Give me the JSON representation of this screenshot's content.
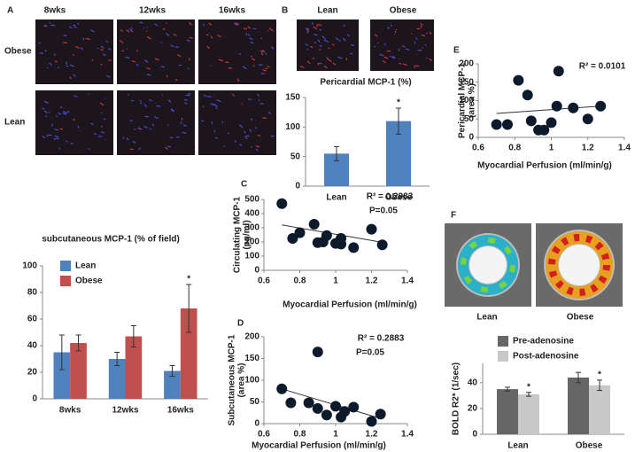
{
  "figure": {
    "panel_labels": [
      "A",
      "B",
      "C",
      "D",
      "E",
      "F"
    ],
    "a_columns": [
      "8wks",
      "12wks",
      "16wks"
    ],
    "a_rows": [
      "Obese",
      "Lean"
    ],
    "b_images": [
      "Lean",
      "Obese"
    ],
    "f_images": [
      "Lean",
      "Obese"
    ]
  },
  "chart_data": [
    {
      "type": "bar",
      "title": "subcutaneous MCP-1 (% of field)",
      "categories": [
        "8wks",
        "12wks",
        "16wks"
      ],
      "series": [
        {
          "name": "Lean",
          "color": "#4f81bd",
          "values": [
            35,
            30,
            21
          ],
          "errors": [
            13,
            5,
            4
          ],
          "markers": [
            null,
            null,
            null
          ]
        },
        {
          "name": "Obese",
          "color": "#c0504d",
          "values": [
            42,
            47,
            68
          ],
          "errors": [
            6,
            8,
            18
          ],
          "markers": [
            null,
            null,
            "*"
          ]
        }
      ],
      "ylim": [
        0,
        100
      ],
      "yticks": [
        0,
        20,
        40,
        60,
        80,
        100
      ],
      "legend": "top-left"
    },
    {
      "type": "bar",
      "title": "Pericardial MCP-1 (%)",
      "categories": [
        "Lean",
        "Obese"
      ],
      "series": [
        {
          "color": "#4f81bd",
          "values": [
            55,
            110
          ],
          "errors": [
            12,
            22
          ],
          "markers": [
            null,
            "*"
          ]
        }
      ],
      "ylim": [
        0,
        150
      ],
      "yticks": [
        0,
        50,
        100,
        150
      ]
    },
    {
      "type": "scatter",
      "xlabel": "Myocardial Perfusion (ml/min/g)",
      "ylabel": [
        "Circulating MCP-1",
        "(pg/ml)"
      ],
      "annotations": [
        "R² = 0.2983",
        "P=0.05"
      ],
      "color": "#0d1a2b",
      "x": [
        0.7,
        0.76,
        0.8,
        0.88,
        0.9,
        0.93,
        0.95,
        1.0,
        1.03,
        1.03,
        1.1,
        1.2,
        1.26
      ],
      "y": [
        470,
        225,
        265,
        325,
        195,
        200,
        245,
        190,
        225,
        185,
        160,
        290,
        180
      ],
      "trendline": {
        "x": [
          0.7,
          1.27
        ],
        "y": [
          320,
          195
        ]
      },
      "xlim": [
        0.6,
        1.4
      ],
      "xticks": [
        0.6,
        0.8,
        1,
        1.2,
        1.4
      ],
      "ylim": [
        0,
        500
      ],
      "yticks": [
        0,
        100,
        200,
        300,
        400,
        500
      ]
    },
    {
      "type": "scatter",
      "xlabel": "Myocardial Perfusion (ml/min/g)",
      "ylabel": [
        "Subcutaneous MCP-1",
        "(area %)"
      ],
      "annotations": [
        "R² = 0.2883",
        "P=0.05"
      ],
      "color": "#0d1a2b",
      "x": [
        0.7,
        0.75,
        0.85,
        0.9,
        0.9,
        0.95,
        1.0,
        1.03,
        1.05,
        1.1,
        1.2,
        1.25
      ],
      "y": [
        80,
        48,
        48,
        165,
        35,
        20,
        40,
        15,
        28,
        38,
        5,
        22
      ],
      "trendline": {
        "x": [
          0.7,
          1.25
        ],
        "y": [
          80,
          12
        ]
      },
      "xlim": [
        0.6,
        1.4
      ],
      "xticks": [
        0.6,
        0.8,
        1,
        1.2,
        1.4
      ],
      "ylim": [
        0,
        200
      ],
      "yticks": [
        0,
        50,
        100,
        150,
        200
      ]
    },
    {
      "type": "scatter",
      "xlabel": "Myocardial Perfusion (ml/min/g)",
      "ylabel": [
        "Pericardial MCP-1",
        "(area %)"
      ],
      "annotations": [
        "R² = 0.0101"
      ],
      "color": "#0d1a2b",
      "x": [
        0.7,
        0.76,
        0.82,
        0.87,
        0.89,
        0.93,
        0.96,
        1.0,
        1.03,
        1.04,
        1.12,
        1.2,
        1.27
      ],
      "y": [
        35,
        35,
        155,
        115,
        45,
        20,
        20,
        40,
        85,
        180,
        80,
        50,
        85
      ],
      "trendline": {
        "x": [
          0.7,
          1.27
        ],
        "y": [
          65,
          85
        ]
      },
      "xlim": [
        0.6,
        1.4
      ],
      "xticks": [
        0.6,
        0.8,
        1,
        1.2,
        1.4
      ],
      "ylim": [
        0,
        200
      ],
      "yticks": [
        0,
        50,
        100,
        150,
        200
      ]
    },
    {
      "type": "bar",
      "ylabel": "BOLD R2* (1/sec)",
      "categories": [
        "Lean",
        "Obese"
      ],
      "series": [
        {
          "name": "Pre-adenosine",
          "color": "#666666",
          "values": [
            35,
            44
          ],
          "errors": [
            1.5,
            4
          ],
          "markers": [
            null,
            null
          ]
        },
        {
          "name": "Post-adenosine",
          "color": "#c8c8c8",
          "values": [
            31,
            38
          ],
          "errors": [
            1.5,
            4
          ],
          "markers": [
            "*",
            "*"
          ]
        }
      ],
      "ylim": [
        0,
        55
      ],
      "yticks": [
        0,
        20,
        40
      ],
      "legend": "top-left"
    }
  ]
}
